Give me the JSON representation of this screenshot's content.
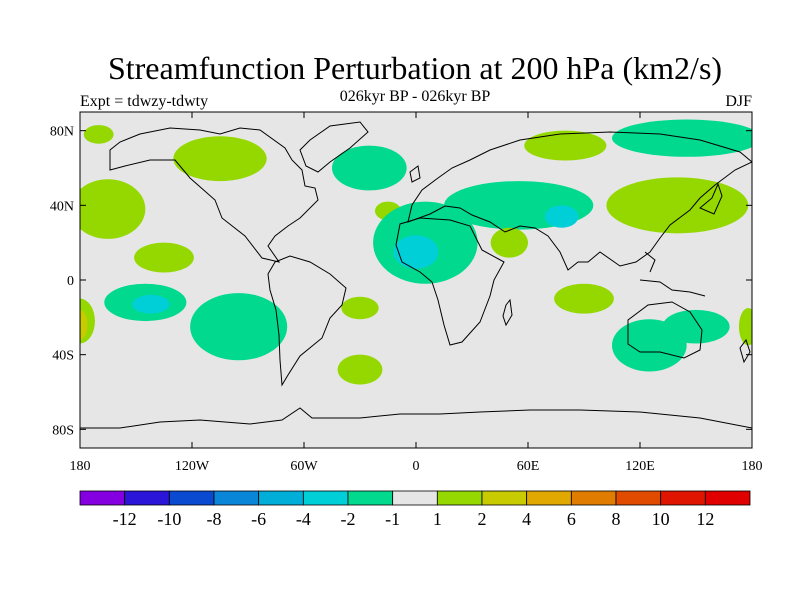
{
  "title": "Streamfunction Perturbation at 200 hPa (km2/s)",
  "subtitle": "026kyr BP - 026kyr BP",
  "experiment": "Expt = tdwzy-tdwty",
  "season": "DJF",
  "map": {
    "lon_range": [
      -180,
      180
    ],
    "lat_range": [
      -90,
      90
    ],
    "lat_ticks": [
      {
        "lat": 80,
        "label": "80N"
      },
      {
        "lat": 40,
        "label": "40N"
      },
      {
        "lat": 0,
        "label": "0"
      },
      {
        "lat": -40,
        "label": "40S"
      },
      {
        "lat": -80,
        "label": "80S"
      }
    ],
    "lon_ticks": [
      {
        "lon": -180,
        "label": "180"
      },
      {
        "lon": -120,
        "label": "120W"
      },
      {
        "lon": -60,
        "label": "60W"
      },
      {
        "lon": 0,
        "label": "0"
      },
      {
        "lon": 60,
        "label": "60E"
      },
      {
        "lon": 120,
        "label": "120E"
      },
      {
        "lon": 180,
        "label": "180"
      }
    ],
    "background_color": "#e6e6e6",
    "anomalies": [
      {
        "name": "north-pacific-positive",
        "lon": -165,
        "lat": 38,
        "rlon": 20,
        "rlat": 16,
        "value": 1.5
      },
      {
        "name": "tropical-pacific-positive",
        "lon": -135,
        "lat": 12,
        "rlon": 16,
        "rlat": 8,
        "value": 1.5
      },
      {
        "name": "south-pacific-negative",
        "lon": -145,
        "lat": -12,
        "rlon": 22,
        "rlat": 10,
        "value": -1.5
      },
      {
        "name": "south-pacific-negative-core",
        "lon": -142,
        "lat": -13,
        "rlon": 10,
        "rlat": 5,
        "value": -2.5
      },
      {
        "name": "southeast-pacific-negative",
        "lon": -95,
        "lat": -25,
        "rlon": 26,
        "rlat": 18,
        "value": -1.5
      },
      {
        "name": "west-atlantic-positive",
        "lon": -180,
        "lat": -22,
        "rlon": 8,
        "rlat": 12,
        "value": 1.5
      },
      {
        "name": "date-line-positive-core",
        "lon": -180,
        "lat": -24,
        "rlon": 4,
        "rlat": 8,
        "value": 2.5
      },
      {
        "name": "canada-positive",
        "lon": -105,
        "lat": 65,
        "rlon": 25,
        "rlat": 12,
        "value": 1.5
      },
      {
        "name": "north-atlantic-negative",
        "lon": -25,
        "lat": 60,
        "rlon": 20,
        "rlat": 12,
        "value": -1.5
      },
      {
        "name": "mid-atlantic-positive",
        "lon": -15,
        "lat": 37,
        "rlon": 7,
        "rlat": 5,
        "value": 1.5
      },
      {
        "name": "tropical-atlantic-negative",
        "lon": 5,
        "lat": 20,
        "rlon": 28,
        "rlat": 22,
        "value": -1.5
      },
      {
        "name": "tropical-atlantic-negative-core",
        "lon": 0,
        "lat": 15,
        "rlon": 12,
        "rlat": 9,
        "value": -2.5
      },
      {
        "name": "south-atlantic-positive",
        "lon": -30,
        "lat": -15,
        "rlon": 10,
        "rlat": 6,
        "value": 1.5
      },
      {
        "name": "south-atlantic-positive-2",
        "lon": -30,
        "lat": -48,
        "rlon": 12,
        "rlat": 8,
        "value": 1.5
      },
      {
        "name": "europe-central-asia-negative",
        "lon": 55,
        "lat": 40,
        "rlon": 40,
        "rlat": 13,
        "value": -1.5
      },
      {
        "name": "central-asia-negative-core",
        "lon": 78,
        "lat": 34,
        "rlon": 9,
        "rlat": 6,
        "value": -2.5
      },
      {
        "name": "arabia-positive",
        "lon": 50,
        "lat": 20,
        "rlon": 10,
        "rlat": 8,
        "value": 1.5
      },
      {
        "name": "siberia-positive",
        "lon": 80,
        "lat": 72,
        "rlon": 22,
        "rlat": 8,
        "value": 1.5
      },
      {
        "name": "arctic-negative",
        "lon": 145,
        "lat": 76,
        "rlon": 40,
        "rlat": 10,
        "value": -1.5
      },
      {
        "name": "east-asia-positive",
        "lon": 140,
        "lat": 40,
        "rlon": 38,
        "rlat": 15,
        "value": 1.5
      },
      {
        "name": "indian-ocean-positive",
        "lon": 90,
        "lat": -10,
        "rlon": 16,
        "rlat": 8,
        "value": 1.5
      },
      {
        "name": "australia-negative",
        "lon": 125,
        "lat": -35,
        "rlon": 20,
        "rlat": 14,
        "value": -1.5
      },
      {
        "name": "tasman-negative",
        "lon": 150,
        "lat": -25,
        "rlon": 18,
        "rlat": 9,
        "value": -1.5
      },
      {
        "name": "east-date-line-positive",
        "lon": 178,
        "lat": -25,
        "rlon": 5,
        "rlat": 10,
        "value": 1.5
      },
      {
        "name": "alaska-positive",
        "lon": -170,
        "lat": 78,
        "rlon": 8,
        "rlat": 5,
        "value": 1.5
      }
    ]
  },
  "colorbar": {
    "levels": [
      -12,
      -10,
      -8,
      -6,
      -4,
      -2,
      -1,
      1,
      2,
      4,
      6,
      8,
      10,
      12
    ],
    "labels": [
      "-12",
      "-10",
      "-8",
      "-6",
      "-4",
      "-2",
      "-1",
      "1",
      "2",
      "4",
      "6",
      "8",
      "10",
      "12"
    ],
    "colors": [
      "#8500e0",
      "#2a15d8",
      "#0a4ad0",
      "#0a86d8",
      "#00aed8",
      "#00cfd8",
      "#00d98e",
      "#e6e6e6",
      "#94d800",
      "#c8cb00",
      "#e0a800",
      "#e07d00",
      "#e04b00",
      "#e01500",
      "#e00000"
    ]
  }
}
